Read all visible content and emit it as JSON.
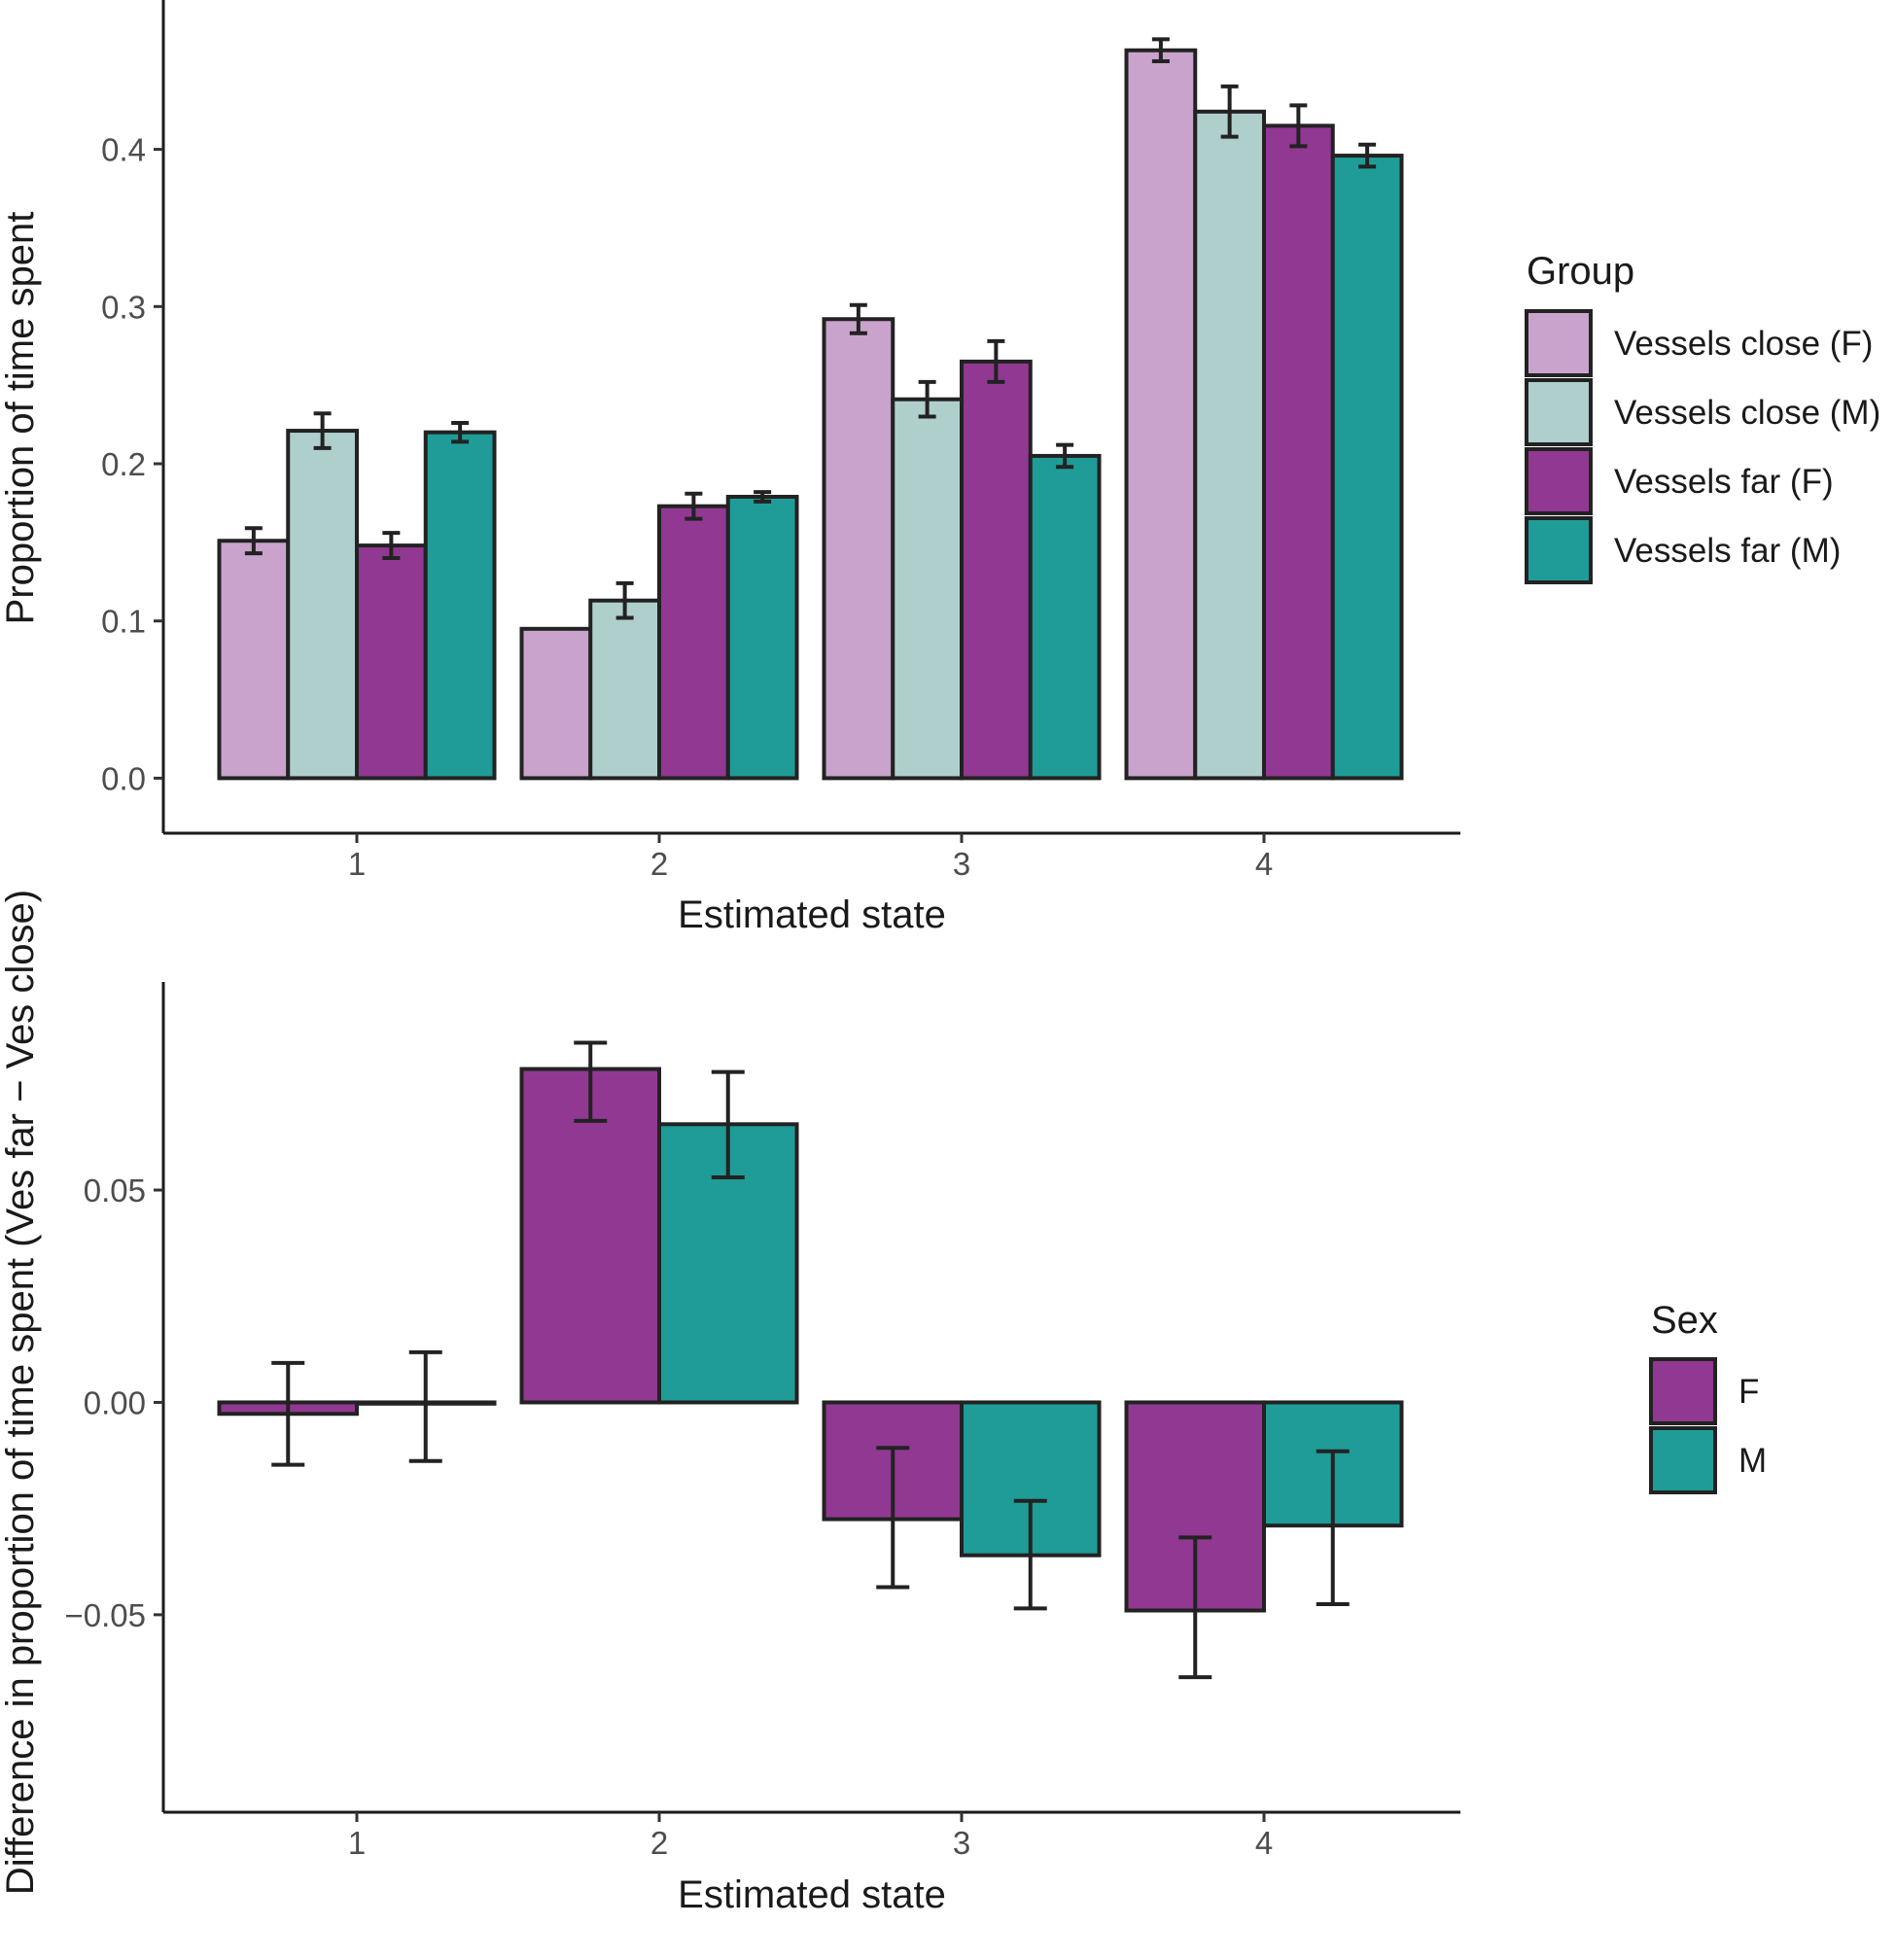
{
  "chart_data": [
    {
      "type": "bar",
      "title": "",
      "xlabel": "Estimated state",
      "ylabel": "Proportion of time spent",
      "categories": [
        "1",
        "2",
        "3",
        "4"
      ],
      "ylim": [
        -0.035,
        0.495
      ],
      "yticks": [
        0.0,
        0.1,
        0.2,
        0.3,
        0.4
      ],
      "ytick_labels": [
        "0.0",
        "0.1",
        "0.2",
        "0.3",
        "0.4"
      ],
      "legend_title": "Group",
      "legend_position": "right",
      "series": [
        {
          "name": "Vessels close (F)",
          "color": "#C9A3CC",
          "values": [
            0.151,
            0.095,
            0.292,
            0.463
          ],
          "err_low": [
            0.143,
            0.095,
            0.283,
            0.456
          ],
          "err_high": [
            0.159,
            0.095,
            0.301,
            0.47
          ]
        },
        {
          "name": "Vessels close (M)",
          "color": "#AFCFCD",
          "values": [
            0.221,
            0.113,
            0.241,
            0.424
          ],
          "err_low": [
            0.21,
            0.102,
            0.23,
            0.408
          ],
          "err_high": [
            0.232,
            0.124,
            0.252,
            0.44
          ]
        },
        {
          "name": "Vessels far (F)",
          "color": "#913892",
          "values": [
            0.148,
            0.173,
            0.265,
            0.415
          ],
          "err_low": [
            0.14,
            0.165,
            0.252,
            0.402
          ],
          "err_high": [
            0.156,
            0.181,
            0.278,
            0.428
          ]
        },
        {
          "name": "Vessels far (M)",
          "color": "#1F9C97",
          "values": [
            0.22,
            0.179,
            0.205,
            0.396
          ],
          "err_low": [
            0.214,
            0.176,
            0.198,
            0.389
          ],
          "err_high": [
            0.226,
            0.182,
            0.212,
            0.403
          ]
        }
      ]
    },
    {
      "type": "bar",
      "title": "",
      "xlabel": "Estimated state",
      "ylabel": "Difference in proportion of time spent (Ves far − Ves close)",
      "categories": [
        "1",
        "2",
        "3",
        "4"
      ],
      "ylim": [
        -0.0965,
        0.099
      ],
      "yticks": [
        -0.05,
        0.0,
        0.05
      ],
      "ytick_labels": [
        "−0.05",
        "0.00",
        "0.05"
      ],
      "legend_title": "Sex",
      "legend_position": "right",
      "series": [
        {
          "name": "F",
          "color": "#913892",
          "values": [
            -0.0027,
            0.0785,
            -0.0275,
            -0.049
          ],
          "err_low": [
            -0.0147,
            0.0663,
            -0.0435,
            -0.0647
          ],
          "err_high": [
            0.0093,
            0.0847,
            -0.0107,
            -0.0318
          ]
        },
        {
          "name": "M",
          "color": "#1F9C97",
          "values": [
            -0.0003,
            0.0655,
            -0.036,
            -0.029
          ],
          "err_low": [
            -0.0138,
            0.053,
            -0.0485,
            -0.0475
          ],
          "err_high": [
            0.0118,
            0.0778,
            -0.0232,
            -0.0115
          ]
        }
      ]
    }
  ]
}
